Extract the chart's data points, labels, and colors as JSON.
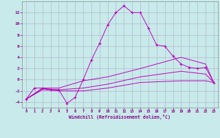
{
  "background_color": "#c8eaea",
  "grid_color": "#b0b8cc",
  "line_color": "#bb00bb",
  "marker_color": "#bb00bb",
  "xlabel": "Windchill (Refroidissement éolien,°C)",
  "xlabel_color": "#880088",
  "tick_color": "#880088",
  "xlim": [
    -0.5,
    23.5
  ],
  "ylim": [
    -5,
    14
  ],
  "yticks": [
    -4,
    -2,
    0,
    2,
    4,
    6,
    8,
    10,
    12
  ],
  "xticks": [
    0,
    1,
    2,
    3,
    4,
    5,
    6,
    7,
    8,
    9,
    10,
    11,
    12,
    13,
    14,
    15,
    16,
    17,
    18,
    19,
    20,
    21,
    22,
    23
  ],
  "curve1_x": [
    0,
    1,
    2,
    3,
    4,
    5,
    6,
    7,
    8,
    9,
    10,
    11,
    12,
    13,
    14,
    15,
    16,
    17,
    18,
    19,
    20,
    21,
    22,
    23
  ],
  "curve1_y": [
    -3.5,
    -1.5,
    -1.5,
    -1.8,
    -1.8,
    -4.2,
    -3.2,
    0.0,
    3.5,
    6.5,
    9.8,
    12.0,
    13.2,
    12.0,
    12.0,
    9.2,
    6.2,
    6.0,
    4.2,
    2.8,
    2.2,
    2.0,
    2.2,
    -0.5
  ],
  "curve2_x": [
    0,
    2,
    4,
    7,
    10,
    14,
    19,
    22,
    23
  ],
  "curve2_y": [
    -3.5,
    -1.5,
    -1.5,
    -0.2,
    0.5,
    2.0,
    4.0,
    2.8,
    -0.5
  ],
  "curve3_x": [
    0,
    2,
    4,
    7,
    10,
    14,
    19,
    22,
    23
  ],
  "curve3_y": [
    -3.5,
    -1.6,
    -1.8,
    -1.5,
    -0.8,
    0.5,
    1.5,
    1.0,
    -0.5
  ],
  "curve4_x": [
    0,
    2,
    4,
    7,
    10,
    14,
    19,
    22,
    23
  ],
  "curve4_y": [
    -3.5,
    -1.8,
    -2.0,
    -2.0,
    -1.5,
    -0.5,
    -0.2,
    -0.2,
    -0.5
  ]
}
